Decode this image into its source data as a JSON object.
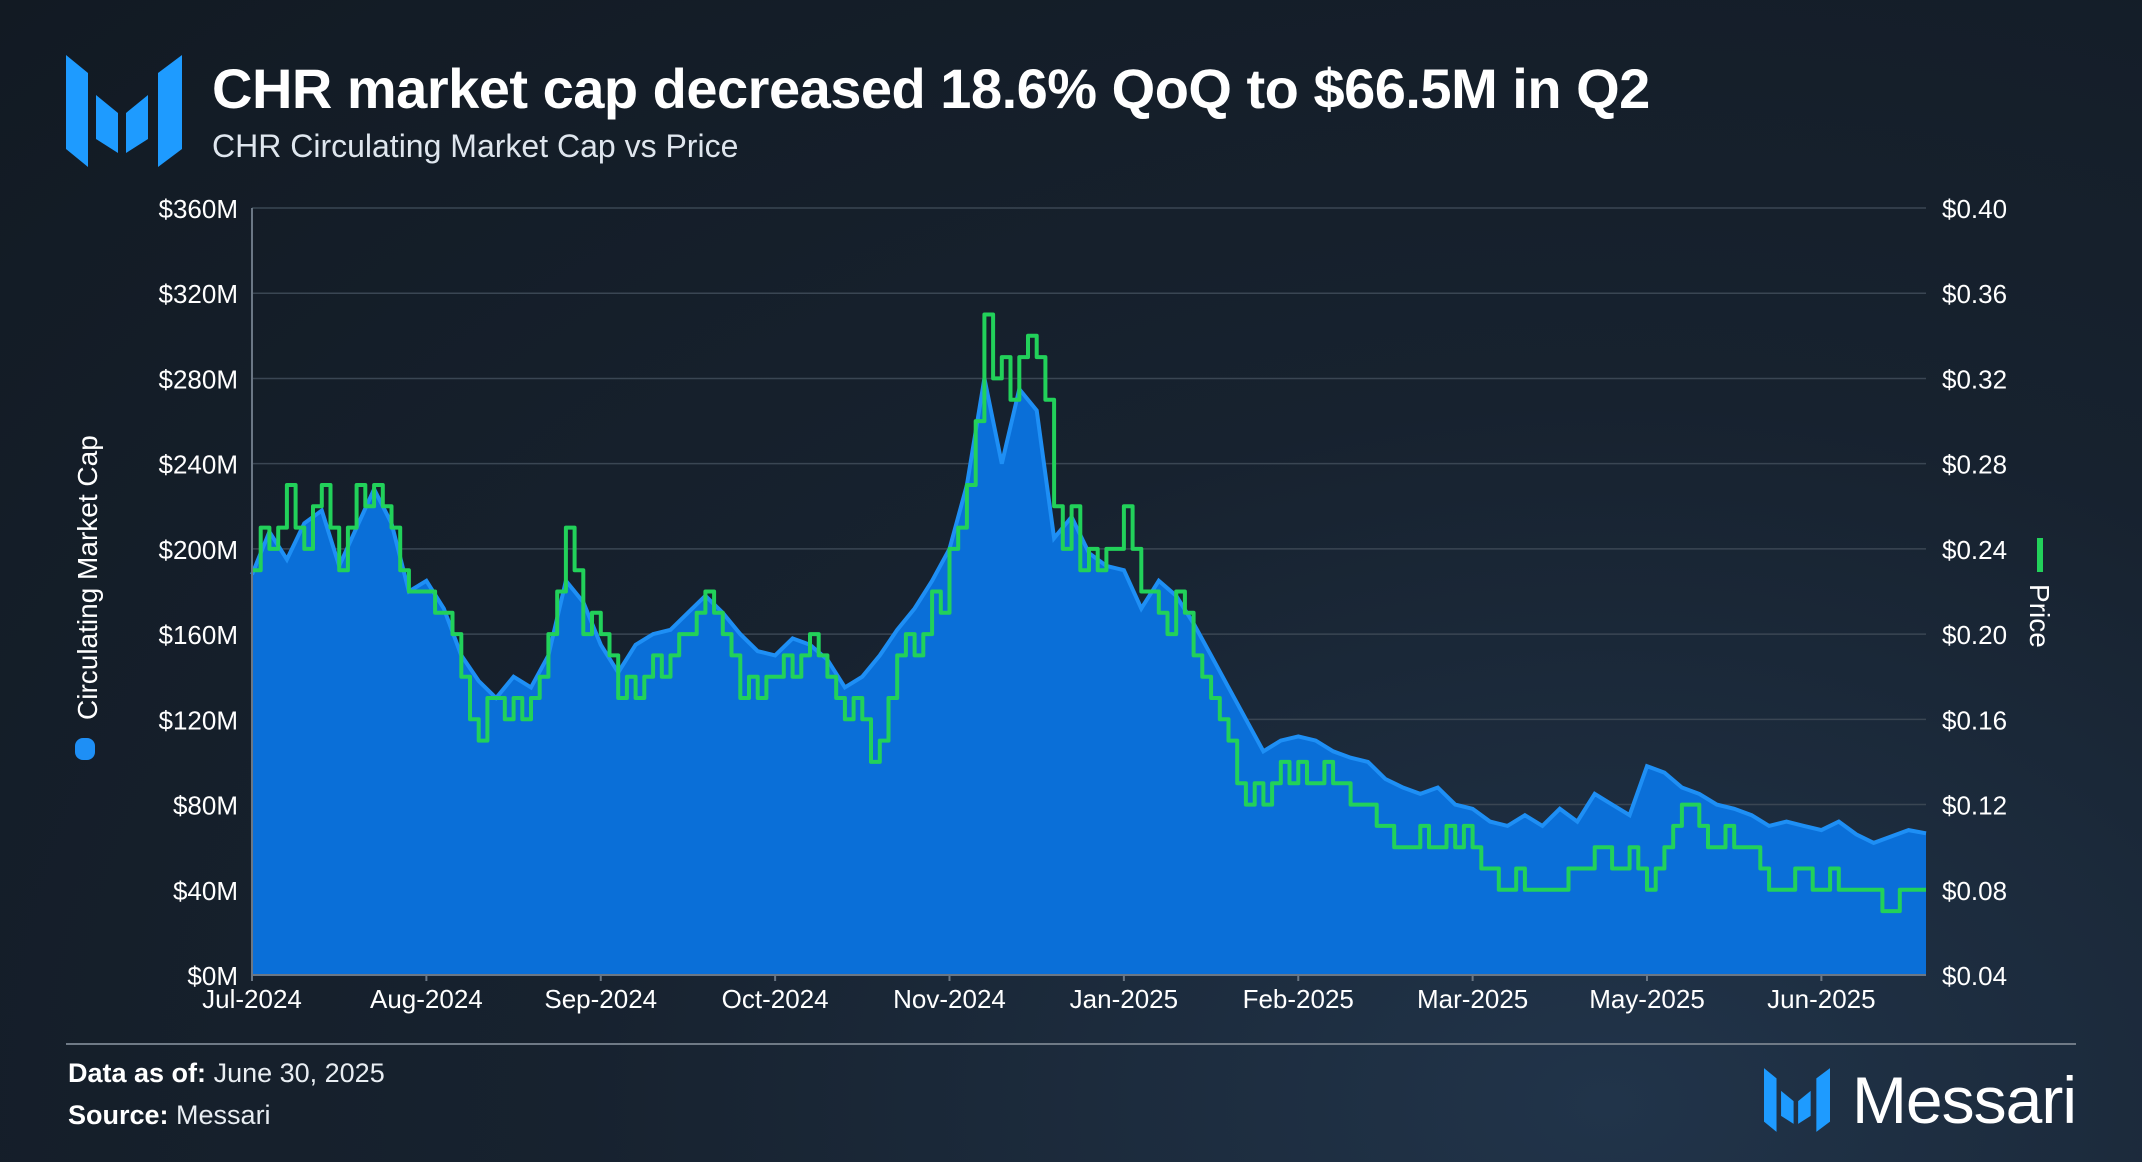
{
  "header": {
    "title": "CHR market cap decreased 18.6% QoQ to $66.5M in Q2",
    "subtitle": "CHR Circulating Market Cap vs Price"
  },
  "footer": {
    "data_as_of_label": "Data as of:",
    "data_as_of_value": "June 30, 2025",
    "source_label": "Source:",
    "source_value": "Messari",
    "brand": "Messari"
  },
  "colors": {
    "market_cap_fill": "#0a6fd8",
    "market_cap_edge": "#1e8ff5",
    "price_line": "#22d15a",
    "grid": "#3a4653",
    "brand_blue": "#1e9bff"
  },
  "chart_data": {
    "type": "area+line",
    "title": "CHR Circulating Market Cap vs Price",
    "ylabel_left": "Circulating Market Cap",
    "ylabel_right": "Price",
    "ylim_left": [
      0,
      360
    ],
    "ylim_right": [
      0.04,
      0.4
    ],
    "y_ticks_left": [
      "$0M",
      "$40M",
      "$80M",
      "$120M",
      "$160M",
      "$200M",
      "$240M",
      "$280M",
      "$320M",
      "$360M"
    ],
    "y_ticks_right": [
      "$0.04",
      "$0.08",
      "$0.12",
      "$0.16",
      "$0.20",
      "$0.24",
      "$0.28",
      "$0.32",
      "$0.36",
      "$0.40"
    ],
    "x_ticks": [
      {
        "label": "Jul-2024",
        "x": 0
      },
      {
        "label": "Aug-2024",
        "x": 20
      },
      {
        "label": "Sep-2024",
        "x": 40
      },
      {
        "label": "Oct-2024",
        "x": 60
      },
      {
        "label": "Nov-2024",
        "x": 80
      },
      {
        "label": "Jan-2025",
        "x": 100
      },
      {
        "label": "Feb-2025",
        "x": 120
      },
      {
        "label": "Mar-2025",
        "x": 140
      },
      {
        "label": "May-2025",
        "x": 160
      },
      {
        "label": "Jun-2025",
        "x": 180
      }
    ],
    "x_range": [
      0,
      192
    ],
    "series": [
      {
        "name": "Circulating Market Cap",
        "unit": "$M",
        "axis": "left",
        "points": [
          [
            0,
            188
          ],
          [
            2,
            208
          ],
          [
            4,
            195
          ],
          [
            6,
            212
          ],
          [
            8,
            218
          ],
          [
            10,
            192
          ],
          [
            12,
            210
          ],
          [
            14,
            228
          ],
          [
            16,
            212
          ],
          [
            18,
            180
          ],
          [
            20,
            185
          ],
          [
            22,
            172
          ],
          [
            24,
            150
          ],
          [
            26,
            138
          ],
          [
            28,
            130
          ],
          [
            30,
            140
          ],
          [
            32,
            135
          ],
          [
            34,
            150
          ],
          [
            36,
            185
          ],
          [
            38,
            175
          ],
          [
            40,
            155
          ],
          [
            42,
            142
          ],
          [
            44,
            155
          ],
          [
            46,
            160
          ],
          [
            48,
            162
          ],
          [
            50,
            170
          ],
          [
            52,
            178
          ],
          [
            54,
            170
          ],
          [
            56,
            160
          ],
          [
            58,
            152
          ],
          [
            60,
            150
          ],
          [
            62,
            158
          ],
          [
            64,
            155
          ],
          [
            66,
            148
          ],
          [
            68,
            135
          ],
          [
            70,
            140
          ],
          [
            72,
            150
          ],
          [
            74,
            162
          ],
          [
            76,
            172
          ],
          [
            78,
            185
          ],
          [
            80,
            200
          ],
          [
            82,
            230
          ],
          [
            84,
            280
          ],
          [
            86,
            240
          ],
          [
            88,
            275
          ],
          [
            90,
            265
          ],
          [
            92,
            205
          ],
          [
            94,
            215
          ],
          [
            96,
            198
          ],
          [
            98,
            192
          ],
          [
            100,
            190
          ],
          [
            102,
            172
          ],
          [
            104,
            185
          ],
          [
            106,
            178
          ],
          [
            108,
            165
          ],
          [
            110,
            150
          ],
          [
            112,
            135
          ],
          [
            114,
            120
          ],
          [
            116,
            105
          ],
          [
            118,
            110
          ],
          [
            120,
            112
          ],
          [
            122,
            110
          ],
          [
            124,
            105
          ],
          [
            126,
            102
          ],
          [
            128,
            100
          ],
          [
            130,
            92
          ],
          [
            132,
            88
          ],
          [
            134,
            85
          ],
          [
            136,
            88
          ],
          [
            138,
            80
          ],
          [
            140,
            78
          ],
          [
            142,
            72
          ],
          [
            144,
            70
          ],
          [
            146,
            75
          ],
          [
            148,
            70
          ],
          [
            150,
            78
          ],
          [
            152,
            72
          ],
          [
            154,
            85
          ],
          [
            156,
            80
          ],
          [
            158,
            75
          ],
          [
            160,
            98
          ],
          [
            162,
            95
          ],
          [
            164,
            88
          ],
          [
            166,
            85
          ],
          [
            168,
            80
          ],
          [
            170,
            78
          ],
          [
            172,
            75
          ],
          [
            174,
            70
          ],
          [
            176,
            72
          ],
          [
            178,
            70
          ],
          [
            180,
            68
          ],
          [
            182,
            72
          ],
          [
            184,
            66
          ],
          [
            186,
            62
          ],
          [
            188,
            65
          ],
          [
            190,
            68
          ],
          [
            192,
            66.5
          ]
        ]
      },
      {
        "name": "Price",
        "unit": "$",
        "axis": "right",
        "points": [
          [
            0,
            0.23
          ],
          [
            1,
            0.25
          ],
          [
            2,
            0.24
          ],
          [
            3,
            0.25
          ],
          [
            4,
            0.27
          ],
          [
            5,
            0.25
          ],
          [
            6,
            0.24
          ],
          [
            7,
            0.26
          ],
          [
            8,
            0.27
          ],
          [
            9,
            0.25
          ],
          [
            10,
            0.23
          ],
          [
            11,
            0.25
          ],
          [
            12,
            0.27
          ],
          [
            13,
            0.26
          ],
          [
            14,
            0.27
          ],
          [
            15,
            0.26
          ],
          [
            16,
            0.25
          ],
          [
            17,
            0.23
          ],
          [
            18,
            0.22
          ],
          [
            19,
            0.22
          ],
          [
            20,
            0.22
          ],
          [
            21,
            0.21
          ],
          [
            22,
            0.21
          ],
          [
            23,
            0.2
          ],
          [
            24,
            0.18
          ],
          [
            25,
            0.16
          ],
          [
            26,
            0.15
          ],
          [
            27,
            0.17
          ],
          [
            28,
            0.17
          ],
          [
            29,
            0.16
          ],
          [
            30,
            0.17
          ],
          [
            31,
            0.16
          ],
          [
            32,
            0.17
          ],
          [
            33,
            0.18
          ],
          [
            34,
            0.2
          ],
          [
            35,
            0.22
          ],
          [
            36,
            0.25
          ],
          [
            37,
            0.23
          ],
          [
            38,
            0.2
          ],
          [
            39,
            0.21
          ],
          [
            40,
            0.2
          ],
          [
            41,
            0.19
          ],
          [
            42,
            0.17
          ],
          [
            43,
            0.18
          ],
          [
            44,
            0.17
          ],
          [
            45,
            0.18
          ],
          [
            46,
            0.19
          ],
          [
            47,
            0.18
          ],
          [
            48,
            0.19
          ],
          [
            49,
            0.2
          ],
          [
            50,
            0.2
          ],
          [
            51,
            0.21
          ],
          [
            52,
            0.22
          ],
          [
            53,
            0.21
          ],
          [
            54,
            0.2
          ],
          [
            55,
            0.19
          ],
          [
            56,
            0.17
          ],
          [
            57,
            0.18
          ],
          [
            58,
            0.17
          ],
          [
            59,
            0.18
          ],
          [
            60,
            0.18
          ],
          [
            61,
            0.19
          ],
          [
            62,
            0.18
          ],
          [
            63,
            0.19
          ],
          [
            64,
            0.2
          ],
          [
            65,
            0.19
          ],
          [
            66,
            0.18
          ],
          [
            67,
            0.17
          ],
          [
            68,
            0.16
          ],
          [
            69,
            0.17
          ],
          [
            70,
            0.16
          ],
          [
            71,
            0.14
          ],
          [
            72,
            0.15
          ],
          [
            73,
            0.17
          ],
          [
            74,
            0.19
          ],
          [
            75,
            0.2
          ],
          [
            76,
            0.19
          ],
          [
            77,
            0.2
          ],
          [
            78,
            0.22
          ],
          [
            79,
            0.21
          ],
          [
            80,
            0.24
          ],
          [
            81,
            0.25
          ],
          [
            82,
            0.27
          ],
          [
            83,
            0.3
          ],
          [
            84,
            0.35
          ],
          [
            85,
            0.32
          ],
          [
            86,
            0.33
          ],
          [
            87,
            0.31
          ],
          [
            88,
            0.33
          ],
          [
            89,
            0.34
          ],
          [
            90,
            0.33
          ],
          [
            91,
            0.31
          ],
          [
            92,
            0.26
          ],
          [
            93,
            0.24
          ],
          [
            94,
            0.26
          ],
          [
            95,
            0.23
          ],
          [
            96,
            0.24
          ],
          [
            97,
            0.23
          ],
          [
            98,
            0.24
          ],
          [
            99,
            0.24
          ],
          [
            100,
            0.26
          ],
          [
            101,
            0.24
          ],
          [
            102,
            0.22
          ],
          [
            103,
            0.22
          ],
          [
            104,
            0.21
          ],
          [
            105,
            0.2
          ],
          [
            106,
            0.22
          ],
          [
            107,
            0.21
          ],
          [
            108,
            0.19
          ],
          [
            109,
            0.18
          ],
          [
            110,
            0.17
          ],
          [
            111,
            0.16
          ],
          [
            112,
            0.15
          ],
          [
            113,
            0.13
          ],
          [
            114,
            0.12
          ],
          [
            115,
            0.13
          ],
          [
            116,
            0.12
          ],
          [
            117,
            0.13
          ],
          [
            118,
            0.14
          ],
          [
            119,
            0.13
          ],
          [
            120,
            0.14
          ],
          [
            121,
            0.13
          ],
          [
            122,
            0.13
          ],
          [
            123,
            0.14
          ],
          [
            124,
            0.13
          ],
          [
            125,
            0.13
          ],
          [
            126,
            0.12
          ],
          [
            127,
            0.12
          ],
          [
            128,
            0.12
          ],
          [
            129,
            0.11
          ],
          [
            130,
            0.11
          ],
          [
            131,
            0.1
          ],
          [
            132,
            0.1
          ],
          [
            133,
            0.1
          ],
          [
            134,
            0.11
          ],
          [
            135,
            0.1
          ],
          [
            136,
            0.1
          ],
          [
            137,
            0.11
          ],
          [
            138,
            0.1
          ],
          [
            139,
            0.11
          ],
          [
            140,
            0.1
          ],
          [
            141,
            0.09
          ],
          [
            142,
            0.09
          ],
          [
            143,
            0.08
          ],
          [
            144,
            0.08
          ],
          [
            145,
            0.09
          ],
          [
            146,
            0.08
          ],
          [
            147,
            0.08
          ],
          [
            148,
            0.08
          ],
          [
            149,
            0.08
          ],
          [
            150,
            0.08
          ],
          [
            151,
            0.09
          ],
          [
            152,
            0.09
          ],
          [
            153,
            0.09
          ],
          [
            154,
            0.1
          ],
          [
            155,
            0.1
          ],
          [
            156,
            0.09
          ],
          [
            157,
            0.09
          ],
          [
            158,
            0.1
          ],
          [
            159,
            0.09
          ],
          [
            160,
            0.08
          ],
          [
            161,
            0.09
          ],
          [
            162,
            0.1
          ],
          [
            163,
            0.11
          ],
          [
            164,
            0.12
          ],
          [
            165,
            0.12
          ],
          [
            166,
            0.11
          ],
          [
            167,
            0.1
          ],
          [
            168,
            0.1
          ],
          [
            169,
            0.11
          ],
          [
            170,
            0.1
          ],
          [
            171,
            0.1
          ],
          [
            172,
            0.1
          ],
          [
            173,
            0.09
          ],
          [
            174,
            0.08
          ],
          [
            175,
            0.08
          ],
          [
            176,
            0.08
          ],
          [
            177,
            0.09
          ],
          [
            178,
            0.09
          ],
          [
            179,
            0.08
          ],
          [
            180,
            0.08
          ],
          [
            181,
            0.09
          ],
          [
            182,
            0.08
          ],
          [
            183,
            0.08
          ],
          [
            184,
            0.08
          ],
          [
            185,
            0.08
          ],
          [
            186,
            0.08
          ],
          [
            187,
            0.07
          ],
          [
            188,
            0.07
          ],
          [
            189,
            0.08
          ],
          [
            190,
            0.08
          ],
          [
            191,
            0.08
          ],
          [
            192,
            0.08
          ]
        ]
      }
    ]
  }
}
